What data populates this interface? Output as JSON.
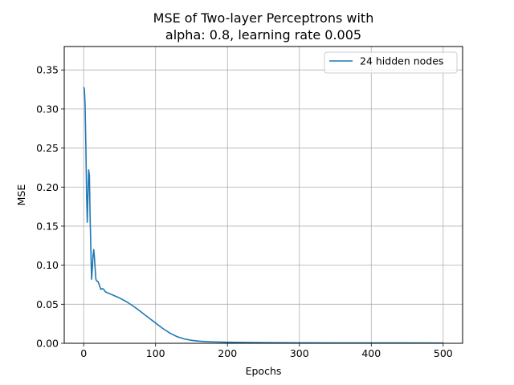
{
  "chart_data": {
    "type": "line",
    "title_line1": "MSE of Two-layer Perceptrons with",
    "title_line2": "alpha: 0.8, learning rate 0.005",
    "xlabel": "Epochs",
    "ylabel": "MSE",
    "xlim": [
      -27,
      527
    ],
    "ylim": [
      0.0,
      0.38
    ],
    "xticks": [
      0,
      100,
      200,
      300,
      400,
      500
    ],
    "xtick_labels": [
      "0",
      "100",
      "200",
      "300",
      "400",
      "500"
    ],
    "yticks": [
      0.0,
      0.05,
      0.1,
      0.15,
      0.2,
      0.25,
      0.3,
      0.35
    ],
    "ytick_labels": [
      "0.00",
      "0.05",
      "0.10",
      "0.15",
      "0.20",
      "0.25",
      "0.30",
      "0.35"
    ],
    "grid": true,
    "legend_position": "top-right",
    "series": [
      {
        "name": "24 hidden nodes",
        "color": "#1f77b4",
        "x": [
          0,
          1,
          2,
          3,
          4,
          5,
          6,
          7,
          8,
          9,
          10,
          11,
          12,
          13,
          14,
          15,
          16,
          17,
          18,
          20,
          22,
          24,
          26,
          28,
          30,
          35,
          40,
          50,
          60,
          70,
          80,
          90,
          100,
          110,
          120,
          130,
          140,
          150,
          160,
          170,
          180,
          200,
          220,
          250,
          300,
          350,
          400,
          450,
          500
        ],
        "y": [
          0.328,
          0.325,
          0.305,
          0.255,
          0.195,
          0.155,
          0.19,
          0.222,
          0.215,
          0.16,
          0.12,
          0.082,
          0.095,
          0.112,
          0.12,
          0.11,
          0.095,
          0.082,
          0.08,
          0.079,
          0.074,
          0.069,
          0.07,
          0.069,
          0.066,
          0.064,
          0.062,
          0.058,
          0.053,
          0.047,
          0.04,
          0.033,
          0.026,
          0.019,
          0.013,
          0.0085,
          0.0055,
          0.0038,
          0.0028,
          0.0022,
          0.0018,
          0.0014,
          0.0011,
          0.0009,
          0.0006,
          0.0005,
          0.0004,
          0.0004,
          0.0003
        ]
      }
    ]
  }
}
